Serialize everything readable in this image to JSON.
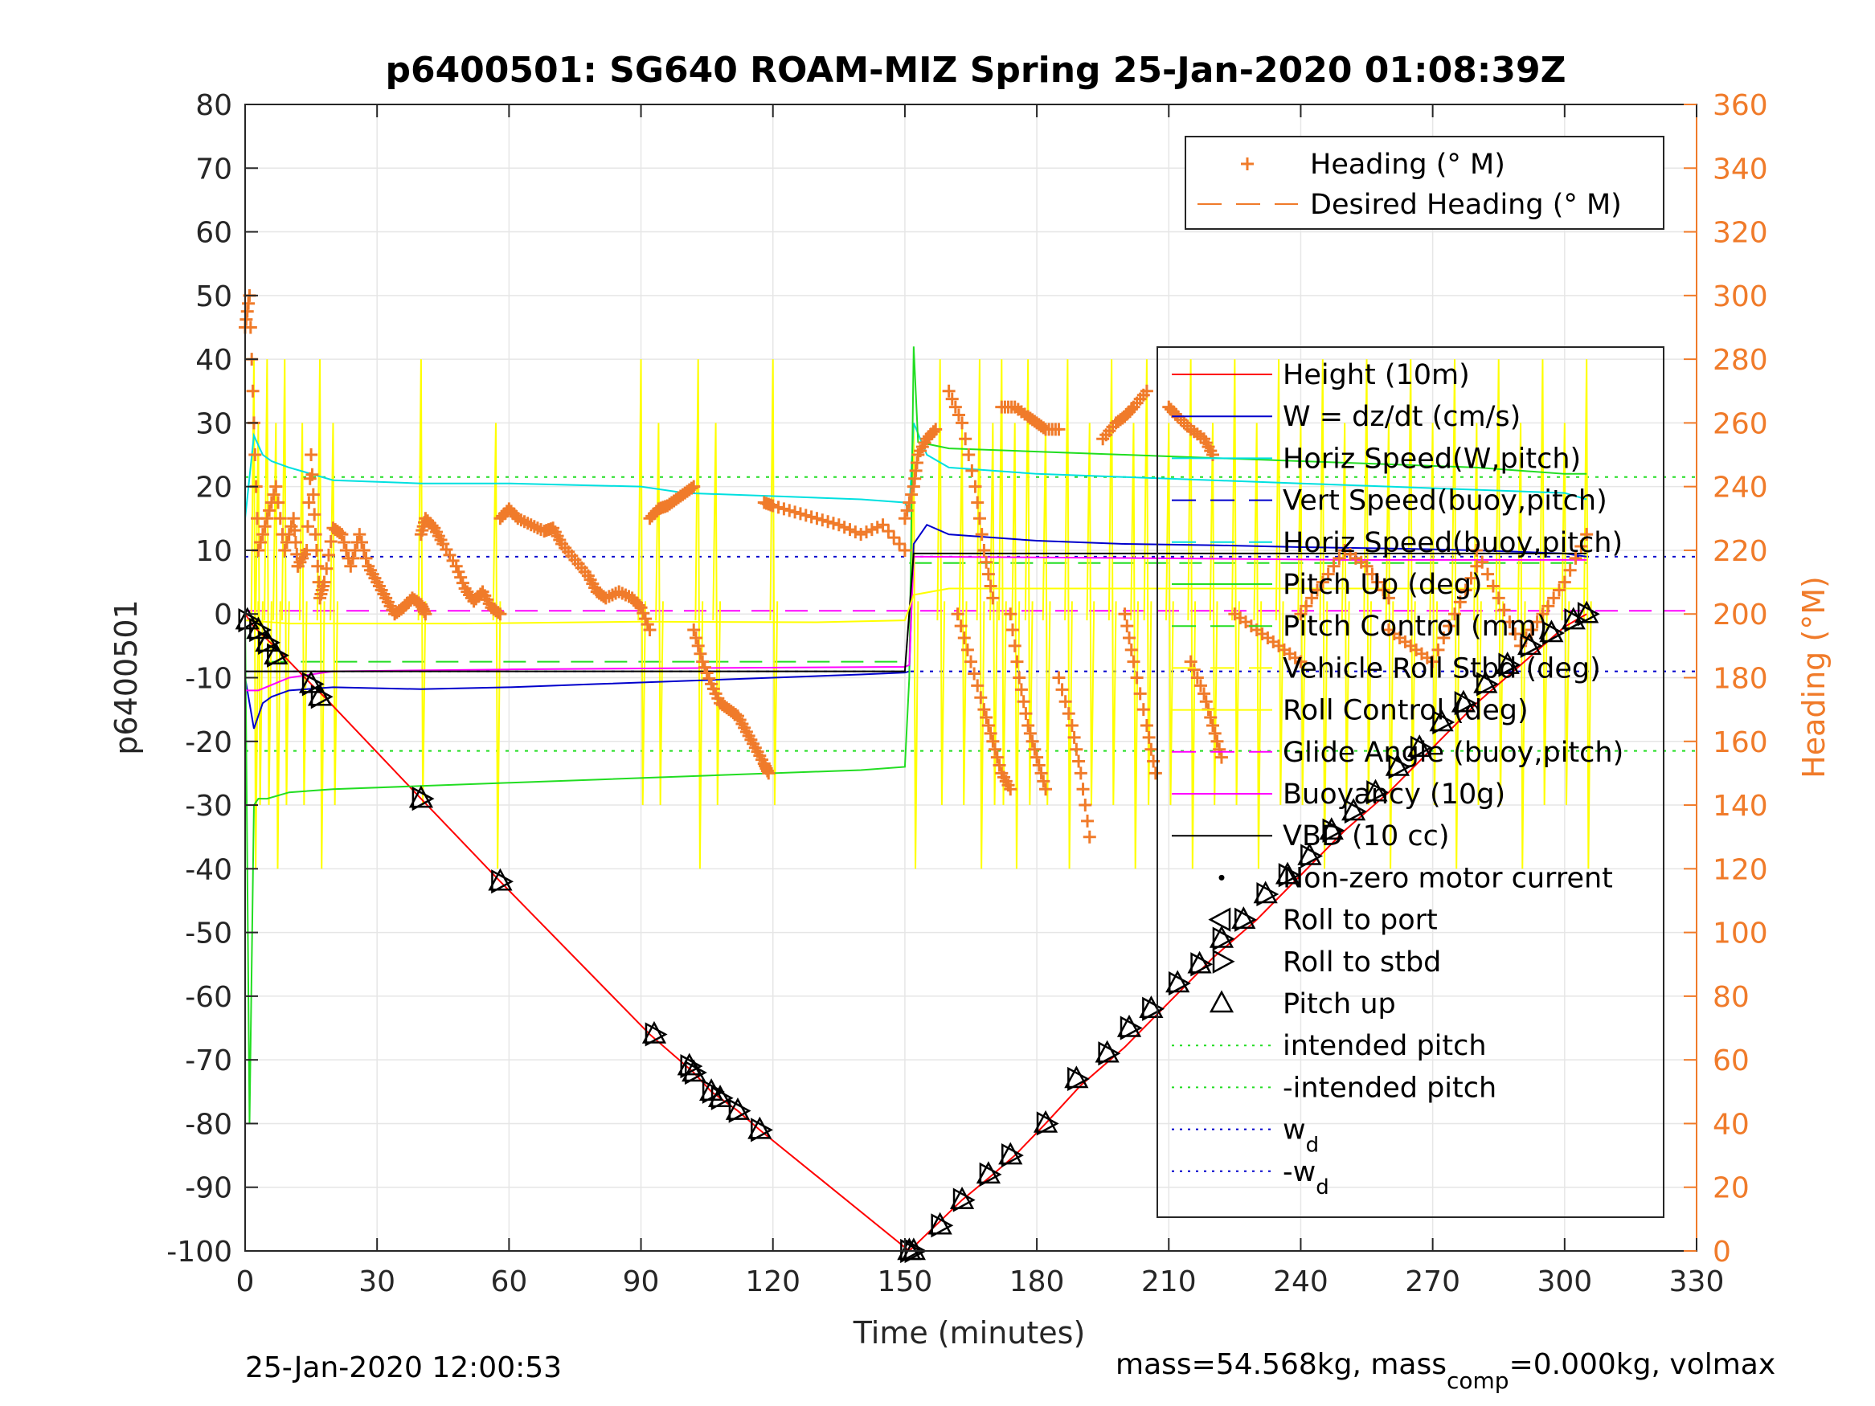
{
  "chart_data": {
    "type": "line",
    "title": "p6400501: SG640 ROAM-MIZ Spring 25-Jan-2020 01:08:39Z",
    "xlabel": "Time (minutes)",
    "ylabel": "p6400501",
    "ylabel_right": "Heading (°M)",
    "xlim": [
      0,
      330
    ],
    "ylim": [
      -100,
      80
    ],
    "ylim_right": [
      0,
      360
    ],
    "xticks": [
      0,
      30,
      60,
      90,
      120,
      150,
      180,
      210,
      240,
      270,
      300,
      330
    ],
    "yticks": [
      -100,
      -90,
      -80,
      -70,
      -60,
      -50,
      -40,
      -30,
      -20,
      -10,
      0,
      10,
      20,
      30,
      40,
      50,
      60,
      70,
      80
    ],
    "yticks_right": [
      0,
      20,
      40,
      60,
      80,
      100,
      120,
      140,
      160,
      180,
      200,
      220,
      240,
      260,
      280,
      300,
      320,
      340,
      360
    ],
    "grid": true,
    "footer_left": "25-Jan-2020 12:00:53",
    "footer_right": "mass=54.568kg, mass",
    "footer_right_sub": "comp",
    "footer_right_tail": "=0.000kg, volmax",
    "legend_heading": [
      {
        "label": "Heading (° M)",
        "color": "#F07B2A",
        "style": "plus"
      },
      {
        "label": "Desired Heading (° M)",
        "color": "#F07B2A",
        "style": "dashed"
      }
    ],
    "legend_main": [
      {
        "label": "Height (10m)",
        "color": "#FF0000",
        "style": "solid"
      },
      {
        "label": "W = dz/dt (cm/s)",
        "color": "#0000CC",
        "style": "solid"
      },
      {
        "label": "Horiz Speed(W,pitch)",
        "color": "#00E0E0",
        "style": "solid"
      },
      {
        "label": "Vert Speed(buoy,pitch)",
        "color": "#0000CC",
        "style": "dashed"
      },
      {
        "label": "Horiz Speed(buoy,pitch)",
        "color": "#00E0E0",
        "style": "dashed"
      },
      {
        "label": "Pitch Up (deg)",
        "color": "#22DD22",
        "style": "solid"
      },
      {
        "label": "Pitch Control (mm)",
        "color": "#22DD22",
        "style": "dashed"
      },
      {
        "label": "Vehicle Roll Stbd (deg)",
        "color": "#FFFF00",
        "style": "dashed"
      },
      {
        "label": "Roll Control (deg)",
        "color": "#FFFF00",
        "style": "solid"
      },
      {
        "label": "Glide Angle (buoy,pitch)",
        "color": "#FF00FF",
        "style": "dashed"
      },
      {
        "label": "Buoyancy (10g)",
        "color": "#FF00FF",
        "style": "solid"
      },
      {
        "label": "VBD (10 cc)",
        "color": "#000000",
        "style": "solid"
      },
      {
        "label": "Non-zero motor current",
        "color": "#000000",
        "style": "dot"
      },
      {
        "label": "Roll to port",
        "color": "#000000",
        "style": "tri-left"
      },
      {
        "label": "Roll to stbd",
        "color": "#000000",
        "style": "tri-right"
      },
      {
        "label": "Pitch up",
        "color": "#000000",
        "style": "tri-up"
      },
      {
        "label": "intended pitch",
        "color": "#22DD22",
        "style": "dotted"
      },
      {
        "label": "-intended pitch",
        "color": "#22DD22",
        "style": "dotted"
      },
      {
        "label": "w",
        "sub": "d",
        "color": "#0000CC",
        "style": "dotted"
      },
      {
        "label": "-w",
        "sub": "d",
        "color": "#0000CC",
        "style": "dotted"
      }
    ],
    "series": [
      {
        "name": "Height (10m)",
        "color": "#FF0000",
        "x": [
          0,
          2,
          5,
          8,
          15,
          18,
          40,
          58,
          92,
          102,
          106,
          112,
          117,
          151,
          157,
          163,
          170,
          175,
          182,
          190,
          200,
          210,
          220,
          230,
          240,
          250,
          260,
          270,
          280,
          290,
          300,
          305
        ],
        "y": [
          0,
          -2,
          -4,
          -6,
          -11,
          -13,
          -29,
          -42,
          -66,
          -72,
          -75,
          -78,
          -81,
          -100,
          -96,
          -92,
          -88,
          -85,
          -80,
          -74,
          -68,
          -61,
          -54,
          -48,
          -41,
          -34,
          -28,
          -21,
          -14,
          -8,
          -2,
          0
        ]
      },
      {
        "name": "W = dz/dt (cm/s)",
        "color": "#0000CC",
        "x": [
          0,
          2,
          4,
          6,
          10,
          20,
          40,
          60,
          80,
          100,
          120,
          140,
          150,
          151,
          152,
          155,
          160,
          180,
          200,
          220,
          240,
          260,
          280,
          300,
          305
        ],
        "y": [
          -10,
          -18,
          -14,
          -13,
          -12,
          -11.5,
          -11.8,
          -11.5,
          -11,
          -10.5,
          -10,
          -9.5,
          -9.2,
          -9,
          11,
          14,
          12.5,
          11.5,
          11,
          10.8,
          10.5,
          10.3,
          10,
          9.5,
          9
        ]
      },
      {
        "name": "Horiz Speed(W,pitch)",
        "color": "#00E0E0",
        "x": [
          0,
          2,
          4,
          6,
          10,
          20,
          40,
          60,
          90,
          100,
          120,
          140,
          150,
          151,
          152,
          155,
          160,
          180,
          200,
          220,
          240,
          260,
          280,
          300,
          305
        ],
        "y": [
          15,
          28,
          25,
          24,
          23,
          21,
          20.5,
          20.5,
          20,
          19,
          18.5,
          18,
          17.5,
          16,
          30,
          25,
          23,
          22,
          21.5,
          21,
          20.5,
          20,
          19.5,
          19,
          18
        ]
      },
      {
        "name": "Pitch Up (deg)",
        "color": "#22DD22",
        "x": [
          0,
          1,
          2,
          3,
          5,
          10,
          20,
          40,
          60,
          80,
          100,
          120,
          140,
          150,
          151,
          152,
          153,
          160,
          180,
          200,
          220,
          240,
          260,
          280,
          300,
          305
        ],
        "y": [
          0,
          -80,
          -30,
          -29,
          -29,
          -28,
          -27.5,
          -27,
          -26.5,
          -26,
          -25.5,
          -25,
          -24.5,
          -24,
          -10,
          42,
          27,
          26,
          25.5,
          25,
          24.5,
          24,
          23.5,
          23,
          22,
          22
        ]
      },
      {
        "name": "Buoyancy (10g)",
        "color": "#FF00FF",
        "x": [
          0,
          3,
          10,
          20,
          60,
          100,
          150,
          151,
          152,
          200,
          250,
          305
        ],
        "y": [
          -12,
          -12,
          -10,
          -9,
          -8.7,
          -8.5,
          -8.3,
          -8,
          9,
          8.8,
          8.5,
          8.5
        ]
      },
      {
        "name": "VBD (10 cc)",
        "color": "#000000",
        "x": [
          0,
          5,
          10,
          20,
          60,
          100,
          150,
          152,
          153,
          200,
          250,
          305
        ],
        "y": [
          -9,
          -9,
          -9,
          -9,
          -9,
          -9,
          -9,
          9.5,
          9.5,
          9.5,
          9.5,
          9.5
        ]
      },
      {
        "name": "Roll Control (deg)",
        "color": "#FFFF00",
        "x": [
          0,
          10,
          20,
          50,
          90,
          130,
          150,
          152,
          160,
          200,
          250,
          305
        ],
        "y": [
          -1,
          -1.5,
          -1.5,
          -1.5,
          -1.2,
          -1.3,
          -1,
          3,
          4,
          4,
          4,
          4
        ]
      }
    ],
    "reference_lines": [
      {
        "name": "intended pitch",
        "color": "#22DD22",
        "y": 21.5
      },
      {
        "name": "-intended pitch",
        "color": "#22DD22",
        "y": -21.5
      },
      {
        "name": "w_d",
        "color": "#0000CC",
        "y": 9
      },
      {
        "name": "-w_d",
        "color": "#0000CC",
        "y": -9
      },
      {
        "name": "Glide Angle (buoy,pitch)",
        "color": "#FF00FF",
        "y": 0.5
      },
      {
        "name": "Pitch Control (mm)",
        "color": "#22DD22",
        "y_left": -7.5,
        "y_right_start": 151,
        "y_right": 8
      }
    ],
    "heading_segments": [
      {
        "x": [
          0,
          1,
          2,
          3,
          5,
          7,
          9,
          11,
          12
        ],
        "y": [
          290,
          300,
          260,
          220,
          230,
          240,
          220,
          230,
          215
        ]
      },
      {
        "x": [
          12,
          14,
          15,
          16,
          17,
          18,
          20,
          22,
          24,
          26,
          28,
          30,
          32,
          34,
          36,
          38,
          40,
          41
        ],
        "y": [
          215,
          220,
          250,
          225,
          205,
          210,
          227,
          225,
          215,
          225,
          215,
          210,
          205,
          200,
          202,
          205,
          203,
          200
        ]
      },
      {
        "x": [
          40,
          41,
          43,
          45,
          48,
          50,
          52,
          54,
          56,
          58
        ],
        "y": [
          225,
          230,
          227,
          222,
          215,
          208,
          204,
          207,
          202,
          200
        ]
      },
      {
        "x": [
          58,
          60,
          62,
          65,
          68,
          70,
          72,
          75,
          78,
          80,
          82,
          85,
          88,
          90,
          92
        ],
        "y": [
          230,
          233,
          230,
          228,
          226,
          227,
          222,
          217,
          212,
          207,
          205,
          207,
          205,
          202,
          195
        ]
      },
      {
        "x": [
          92,
          94,
          96,
          98,
          100,
          102
        ],
        "y": [
          230,
          233,
          234,
          236,
          238,
          240
        ]
      },
      {
        "x": [
          102,
          104,
          106,
          108,
          110,
          112,
          114,
          116,
          118,
          119
        ],
        "y": [
          195,
          185,
          178,
          172,
          170,
          168,
          163,
          158,
          153,
          150
        ]
      },
      {
        "x": [
          118,
          120,
          125,
          130,
          135,
          140,
          145,
          150
        ],
        "y": [
          235,
          234,
          232,
          230,
          228,
          225,
          228,
          220
        ]
      },
      {
        "x": [
          150,
          152,
          153,
          155,
          157
        ],
        "y": [
          230,
          240,
          250,
          255,
          258
        ]
      },
      {
        "x": [
          160,
          163,
          166,
          168,
          170
        ],
        "y": [
          270,
          260,
          240,
          220,
          205
        ]
      },
      {
        "x": [
          162,
          165,
          168,
          170,
          172,
          174
        ],
        "y": [
          200,
          185,
          170,
          160,
          150,
          145
        ]
      },
      {
        "x": [
          172,
          175,
          178,
          180,
          182,
          185
        ],
        "y": [
          265,
          265,
          262,
          260,
          258,
          258
        ]
      },
      {
        "x": [
          174,
          176,
          178,
          180,
          182
        ],
        "y": [
          200,
          180,
          165,
          155,
          145
        ]
      },
      {
        "x": [
          185,
          188,
          190,
          192
        ],
        "y": [
          180,
          165,
          150,
          130
        ]
      },
      {
        "x": [
          195,
          198,
          200,
          202,
          205
        ],
        "y": [
          255,
          260,
          262,
          265,
          270
        ]
      },
      {
        "x": [
          200,
          202,
          205,
          207
        ],
        "y": [
          200,
          185,
          165,
          150
        ]
      },
      {
        "x": [
          210,
          212,
          215,
          218,
          220
        ],
        "y": [
          265,
          262,
          258,
          255,
          250
        ]
      },
      {
        "x": [
          215,
          218,
          220,
          222
        ],
        "y": [
          185,
          175,
          165,
          155
        ]
      },
      {
        "x": [
          225,
          230,
          235,
          240
        ],
        "y": [
          200,
          195,
          190,
          185
        ]
      },
      {
        "x": [
          240,
          245,
          250,
          255,
          260
        ],
        "y": [
          200,
          210,
          220,
          215,
          205
        ]
      },
      {
        "x": [
          260,
          265,
          270,
          275,
          280
        ],
        "y": [
          195,
          190,
          185,
          200,
          215
        ]
      },
      {
        "x": [
          280,
          285,
          290,
          295,
          300,
          305
        ],
        "y": [
          220,
          205,
          190,
          200,
          210,
          225
        ]
      }
    ],
    "roll_spikes_x": [
      2,
      3,
      5,
      7,
      9,
      13,
      17,
      20,
      40,
      57,
      90,
      94,
      103,
      107,
      120,
      152,
      158,
      163,
      167,
      170,
      172,
      175,
      178,
      182,
      187,
      192,
      197,
      202,
      205,
      210,
      215,
      220,
      225,
      230,
      235,
      240,
      245,
      250,
      255,
      260,
      265,
      270,
      275,
      280,
      285,
      290,
      295,
      300,
      305
    ],
    "markers_pitch_up": [
      {
        "x": 0.5,
        "y": -1
      },
      {
        "x": 3,
        "y": -2.5
      },
      {
        "x": 5,
        "y": -4.5
      },
      {
        "x": 7,
        "y": -6.5
      },
      {
        "x": 15,
        "y": -11
      },
      {
        "x": 17,
        "y": -13
      },
      {
        "x": 40,
        "y": -29
      },
      {
        "x": 58,
        "y": -42
      },
      {
        "x": 93,
        "y": -66
      },
      {
        "x": 101,
        "y": -71
      },
      {
        "x": 102,
        "y": -72
      },
      {
        "x": 106,
        "y": -75
      },
      {
        "x": 108,
        "y": -76
      },
      {
        "x": 112,
        "y": -78
      },
      {
        "x": 117,
        "y": -81
      },
      {
        "x": 151,
        "y": -100
      },
      {
        "x": 152,
        "y": -100
      },
      {
        "x": 158,
        "y": -96
      },
      {
        "x": 163,
        "y": -92
      },
      {
        "x": 169,
        "y": -88
      },
      {
        "x": 174,
        "y": -85
      },
      {
        "x": 182,
        "y": -80
      },
      {
        "x": 189,
        "y": -73
      },
      {
        "x": 196,
        "y": -69
      },
      {
        "x": 201,
        "y": -65
      },
      {
        "x": 206,
        "y": -62
      },
      {
        "x": 212,
        "y": -58
      },
      {
        "x": 217,
        "y": -55
      },
      {
        "x": 222,
        "y": -51
      },
      {
        "x": 227,
        "y": -48
      },
      {
        "x": 232,
        "y": -44
      },
      {
        "x": 237,
        "y": -41
      },
      {
        "x": 242,
        "y": -38
      },
      {
        "x": 247,
        "y": -34
      },
      {
        "x": 252,
        "y": -31
      },
      {
        "x": 257,
        "y": -28
      },
      {
        "x": 262,
        "y": -24
      },
      {
        "x": 267,
        "y": -21
      },
      {
        "x": 272,
        "y": -17
      },
      {
        "x": 277,
        "y": -14
      },
      {
        "x": 282,
        "y": -11
      },
      {
        "x": 287,
        "y": -8
      },
      {
        "x": 292,
        "y": -5
      },
      {
        "x": 297,
        "y": -3
      },
      {
        "x": 302,
        "y": -1
      },
      {
        "x": 305,
        "y": 0
      }
    ]
  }
}
